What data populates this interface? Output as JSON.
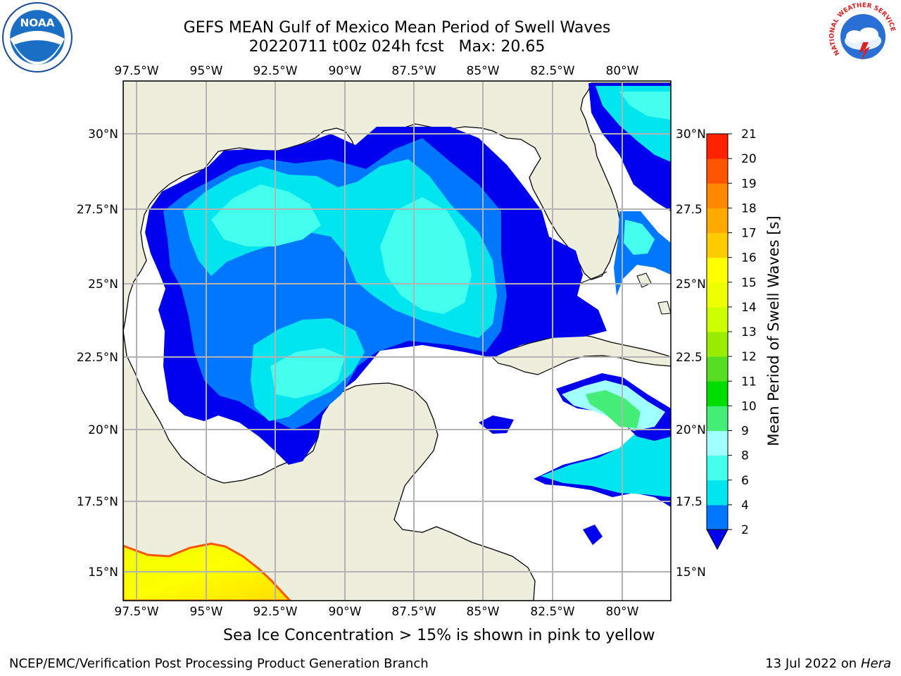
{
  "header": {
    "title_line1": "GEFS MEAN Gulf of Mexico Mean Period of Swell Waves",
    "title_line2": "20220711 t00z 024h fcst   Max: 20.65"
  },
  "logos": {
    "left": "noaa-logo",
    "left_text": "NOAA",
    "right": "nws-logo",
    "right_text": "NATIONAL WEATHER SERVICE"
  },
  "map": {
    "lon_labels": [
      "97.5°W",
      "95°W",
      "92.5°W",
      "90°W",
      "87.5°W",
      "85°W",
      "82.5°W",
      "80°W"
    ],
    "lat_labels_left": [
      "30°N",
      "27.5°N",
      "25°N",
      "22.5°N",
      "20°N",
      "17.5°N",
      "15°N"
    ],
    "lat_labels_right": [
      "30°N",
      "27.5",
      "25°N",
      "22.5",
      "20°N",
      "17.5",
      "15°N"
    ],
    "land_color": "#eeeedd",
    "grid_color": "#b3b3b3"
  },
  "colorbar": {
    "label": "Mean Period of Swell Waves [s]",
    "ticks": [
      "2",
      "4",
      "6",
      "8",
      "9",
      "10",
      "11",
      "12",
      "13",
      "14",
      "15",
      "16",
      "17",
      "18",
      "19",
      "20",
      "21"
    ],
    "colors": [
      "#0000ee",
      "#0077ff",
      "#00e5ee",
      "#44ffee",
      "#a0ffff",
      "#44ee77",
      "#00dd00",
      "#55dd22",
      "#99ee00",
      "#ccff00",
      "#eeff00",
      "#ffff00",
      "#ffcc00",
      "#ffaa00",
      "#ff8800",
      "#ff5500",
      "#ff2200",
      "#ff0000"
    ]
  },
  "footer": {
    "note": "Sea Ice Concentration > 15% is shown in pink to yellow",
    "left": "NCEP/EMC/Verification Post Processing Product Generation Branch",
    "right_prefix": "13 Jul 2022 on ",
    "right_host": "Hera"
  }
}
